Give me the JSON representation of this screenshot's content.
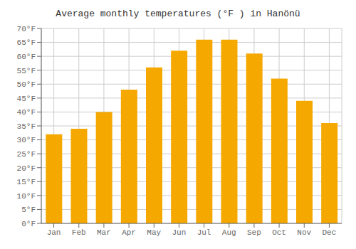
{
  "chart_data": {
    "type": "bar",
    "title": "Average monthly temperatures (°F ) in Hanönü",
    "categories": [
      "Jan",
      "Feb",
      "Mar",
      "Apr",
      "May",
      "Jun",
      "Jul",
      "Aug",
      "Sep",
      "Oct",
      "Nov",
      "Dec"
    ],
    "values": [
      32,
      34,
      40,
      48,
      56,
      62,
      66,
      66,
      61,
      52,
      44,
      36
    ],
    "color": "#F5A800",
    "ylim": [
      0,
      70
    ],
    "yticks": [
      {
        "value": 0,
        "label": "0°F"
      },
      {
        "value": 5,
        "label": "5°F"
      },
      {
        "value": 10,
        "label": "10°F"
      },
      {
        "value": 15,
        "label": "15°F"
      },
      {
        "value": 20,
        "label": "20°F"
      },
      {
        "value": 25,
        "label": "25°F"
      },
      {
        "value": 30,
        "label": "30°F"
      },
      {
        "value": 35,
        "label": "35°F"
      },
      {
        "value": 40,
        "label": "40°F"
      },
      {
        "value": 45,
        "label": "45°F"
      },
      {
        "value": 50,
        "label": "50°F"
      },
      {
        "value": 55,
        "label": "55°F"
      },
      {
        "value": 60,
        "label": "60°F"
      },
      {
        "value": 65,
        "label": "65°F"
      },
      {
        "value": 70,
        "label": "70°F"
      }
    ],
    "grid": true
  }
}
